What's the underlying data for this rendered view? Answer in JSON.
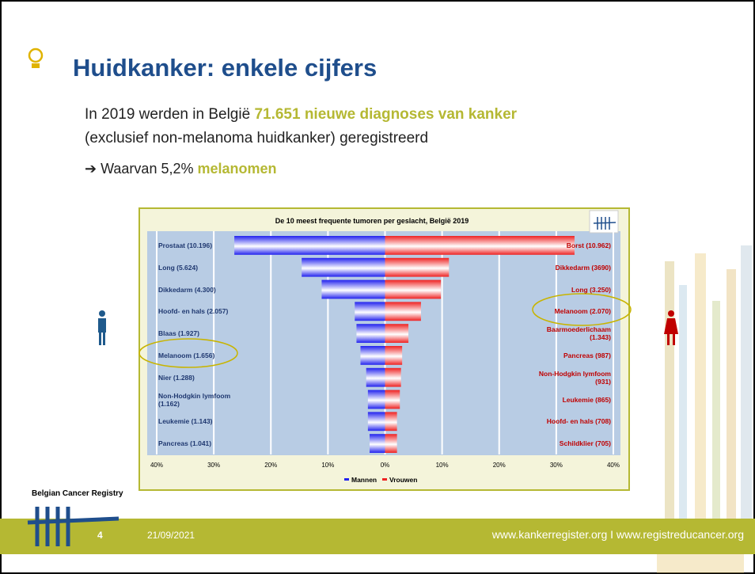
{
  "slide": {
    "title": "Huidkanker: enkele cijfers",
    "line1_a": "In 2019 werden in België ",
    "line1_b": "71.651 nieuwe diagnoses van kanker",
    "line2": "(exclusief non-melanoma huidkanker) geregistreerd",
    "line3_a": "Waarvan 5,2% ",
    "line3_b": "melanomen",
    "registry": "Belgian Cancer Registry",
    "page": "4",
    "date": "21/09/2021",
    "urls": "www.kankerregister.org I www.registreducancer.org"
  },
  "chart_data": {
    "type": "butterfly",
    "title": "De 10 meest frequente tumoren per geslacht, België 2019",
    "xlim": [
      -40,
      40
    ],
    "xticks": [
      {
        "value": -40,
        "label": "40%"
      },
      {
        "value": -30,
        "label": "30%"
      },
      {
        "value": -20,
        "label": "20%"
      },
      {
        "value": -10,
        "label": "10%"
      },
      {
        "value": 0,
        "label": "0%"
      },
      {
        "value": 10,
        "label": "10%"
      },
      {
        "value": 20,
        "label": "20%"
      },
      {
        "value": 30,
        "label": "30%"
      },
      {
        "value": 40,
        "label": "40%"
      }
    ],
    "grid": true,
    "series": [
      {
        "name": "Mannen",
        "color": "#2222ee",
        "categories": [
          "Prostaat (10.196)",
          "Long (5.624)",
          "Dikkedarm (4.300)",
          "Hoofd- en hals (2.057)",
          "Blaas (1.927)",
          "Melanoom (1.656)",
          "Nier (1.288)",
          "Non-Hodgkin lymfoom (1.162)",
          "Leukemie (1.143)",
          "Pancreas (1.041)"
        ],
        "values": [
          -26.4,
          -14.6,
          -11.1,
          -5.3,
          -5.0,
          -4.3,
          -3.3,
          -3.0,
          -3.0,
          -2.7
        ]
      },
      {
        "name": "Vrouwen",
        "color": "#ee2222",
        "categories": [
          "Borst (10.962)",
          "Dikkedarm (3690)",
          "Long (3.250)",
          "Melanoom (2.070)",
          "Baarmoederlichaam (1.343)",
          "Pancreas (987)",
          "Non-Hodgkin lymfoom (931)",
          "Leukemie (865)",
          "Hoofd- en hals (708)",
          "Schildklier (705)"
        ],
        "values": [
          33.2,
          11.2,
          9.8,
          6.3,
          4.1,
          3.0,
          2.8,
          2.6,
          2.1,
          2.1
        ]
      }
    ]
  }
}
